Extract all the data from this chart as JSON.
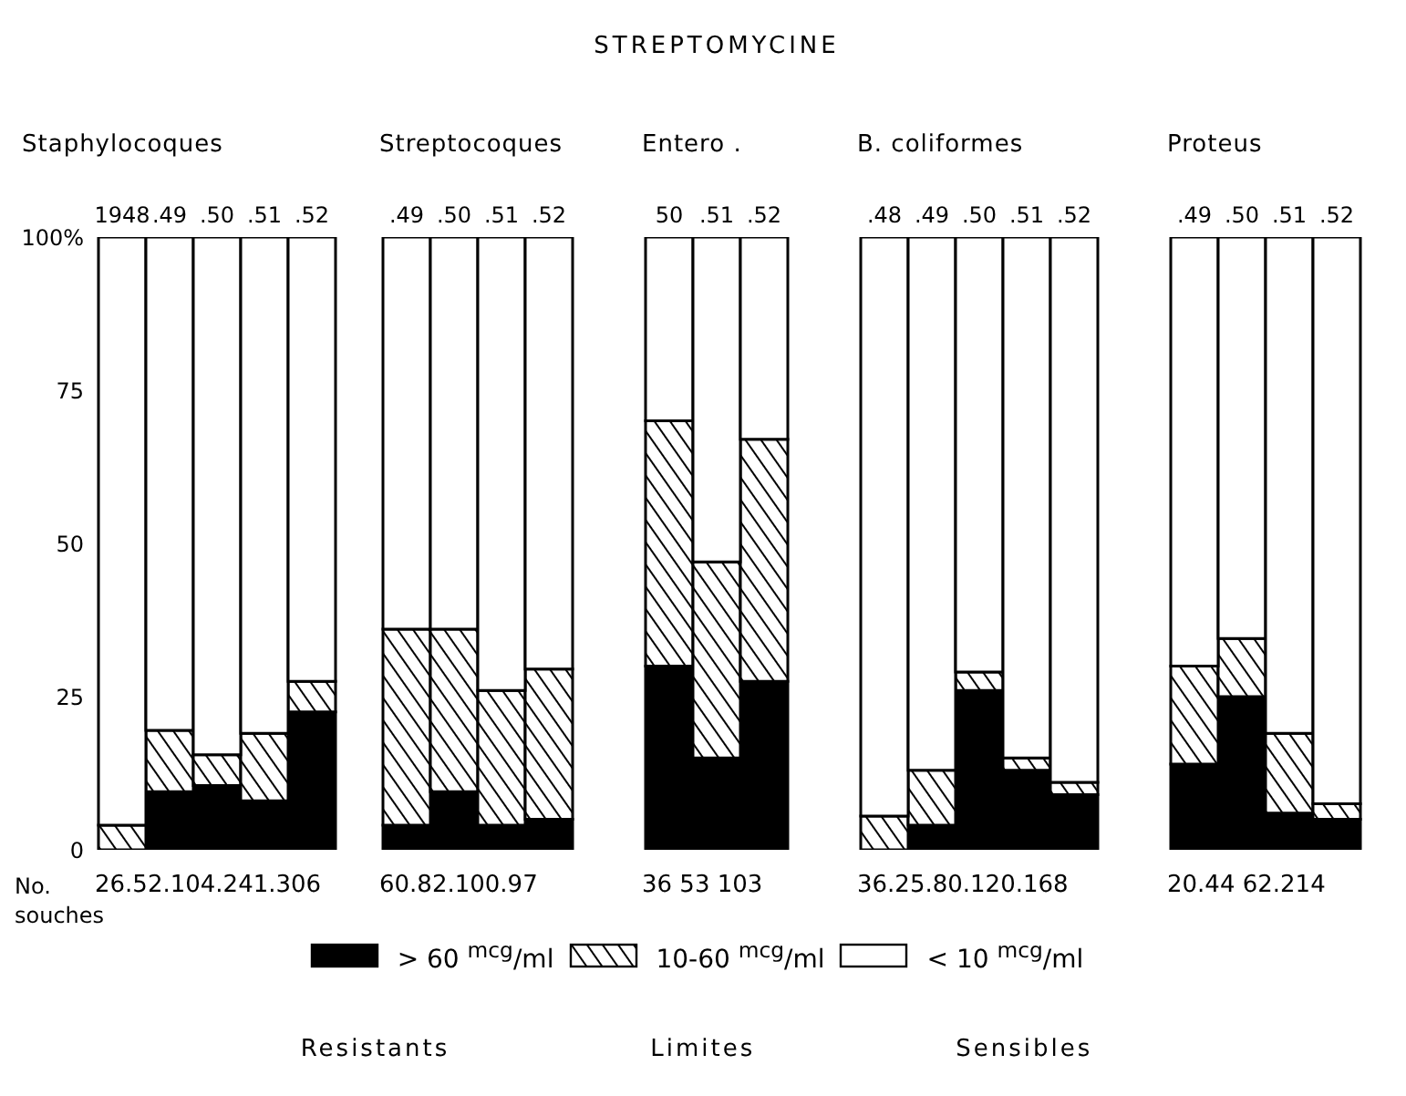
{
  "chart_data": [
    {
      "type": "bar",
      "stacked": true,
      "subtitle": "Staphylocoques",
      "categories": [
        "1948",
        ".49",
        ".50",
        ".51",
        ".52"
      ],
      "ylim": [
        0,
        100
      ],
      "yticks": [
        0,
        25,
        50,
        75,
        {
          "value": 100,
          "label": "100%"
        }
      ],
      "legend": "bottom",
      "annotations": [
        "26.52.104.241.306",
        "No. souches",
        "Resistants",
        "Limites",
        "Sensibles"
      ],
      "series": [
        {
          "name": "> 60 $^{mcg}$/ml",
          "color": "#000000",
          "values": [
            0,
            9.5,
            10.5,
            8,
            22.5
          ]
        },
        {
          "name": "10-60 $^{mcg}$/ml",
          "color": "#000000",
          "values": [
            4,
            10,
            5,
            11,
            5
          ]
        },
        {
          "name": "< 10 $^{mcg}$/ml",
          "color": "#ffffff",
          "values": [
            96,
            80.5,
            84.5,
            81,
            72.5
          ]
        }
      ]
    },
    {
      "type": "bar",
      "stacked": true,
      "subtitle": "Streptocoques",
      "categories": [
        ".49",
        ".50",
        ".51",
        ".52"
      ],
      "ylim": [
        0,
        100
      ],
      "tick_labels": "x",
      "annotations": [
        "60.82.100.97"
      ],
      "series": [
        {
          "color": "#000000",
          "values": [
            4,
            9.5,
            4,
            5
          ]
        },
        {
          "color": "#000000",
          "values": [
            32,
            26.5,
            22,
            24.5
          ]
        },
        {
          "color": "#ffffff",
          "values": [
            64,
            64,
            74,
            70.5
          ]
        }
      ]
    },
    {
      "type": "bar",
      "stacked": true,
      "title": "STREPTOMYCINE",
      "subtitle": "Entero .",
      "categories": [
        "50",
        ".51",
        ".52"
      ],
      "ylim": [
        0,
        100
      ],
      "tick_labels": "x",
      "annotations": [
        "36 53 103"
      ],
      "series": [
        {
          "color": "#000000",
          "values": [
            30,
            15,
            27.5
          ]
        },
        {
          "color": "#000000",
          "values": [
            40,
            32,
            39.5
          ]
        },
        {
          "color": "#ffffff",
          "values": [
            30,
            53,
            33
          ]
        }
      ]
    },
    {
      "type": "bar",
      "stacked": true,
      "subtitle": "B. coliformes",
      "categories": [
        ".48",
        ".49",
        ".50",
        ".51",
        ".52"
      ],
      "ylim": [
        0,
        100
      ],
      "tick_labels": "x",
      "annotations": [
        "36.25.80.120.168"
      ],
      "series": [
        {
          "color": "#000000",
          "values": [
            0,
            4,
            26,
            13,
            9
          ]
        },
        {
          "color": "#000000",
          "values": [
            5.5,
            9,
            3,
            2,
            2
          ]
        },
        {
          "color": "#ffffff",
          "values": [
            94.5,
            87,
            71,
            85,
            89
          ]
        }
      ]
    },
    {
      "type": "bar",
      "stacked": true,
      "subtitle": "Proteus",
      "categories": [
        ".49",
        ".50",
        ".51",
        ".52"
      ],
      "ylim": [
        0,
        100
      ],
      "tick_labels": "x",
      "annotations": [
        "20.44 62.214"
      ],
      "series": [
        {
          "color": "#000000",
          "values": [
            14,
            25,
            6,
            5
          ]
        },
        {
          "color": "#000000",
          "values": [
            16,
            9.5,
            13,
            2.5
          ]
        },
        {
          "color": "#ffffff",
          "values": [
            70,
            65.5,
            81,
            92.5
          ]
        }
      ]
    }
  ]
}
